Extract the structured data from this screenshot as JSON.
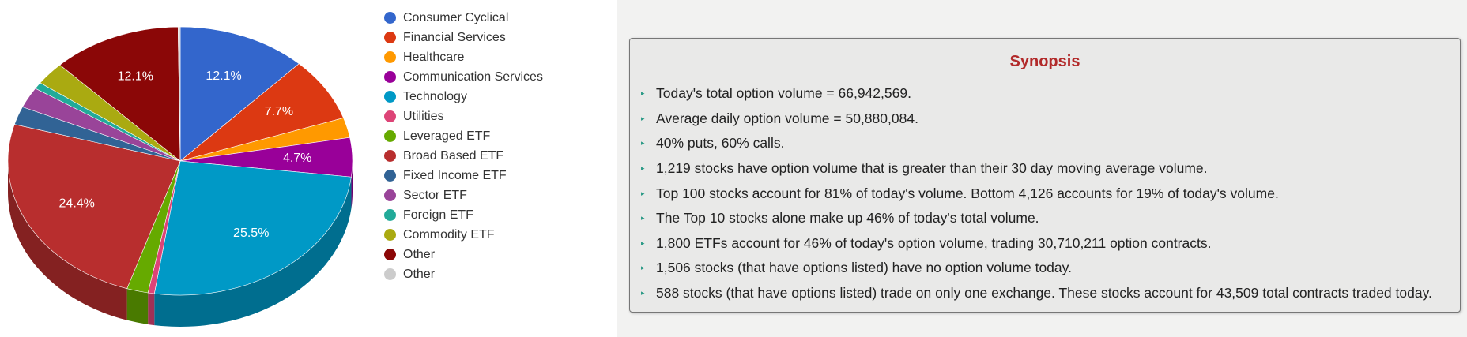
{
  "chart_data": {
    "type": "pie",
    "title": "",
    "slices": [
      {
        "label": "Consumer Cyclical",
        "value": 12.1,
        "color": "#3366cc",
        "text": "12.1%"
      },
      {
        "label": "Financial Services",
        "value": 7.7,
        "color": "#dc3912",
        "text": "7.7%"
      },
      {
        "label": "Healthcare",
        "value": 2.4,
        "color": "#ff9900",
        "text": ""
      },
      {
        "label": "Communication Services",
        "value": 4.7,
        "color": "#990099",
        "text": "4.7%"
      },
      {
        "label": "Technology",
        "value": 25.5,
        "color": "#0099c6",
        "text": "25.5%"
      },
      {
        "label": "Utilities",
        "value": 0.6,
        "color": "#dd4477",
        "text": ""
      },
      {
        "label": "Leveraged ETF",
        "value": 2.0,
        "color": "#66aa00",
        "text": ""
      },
      {
        "label": "Broad Based ETF",
        "value": 24.4,
        "color": "#b82e2e",
        "text": "24.4%"
      },
      {
        "label": "Fixed Income ETF",
        "value": 2.2,
        "color": "#316395",
        "text": ""
      },
      {
        "label": "Sector ETF",
        "value": 2.5,
        "color": "#994499",
        "text": ""
      },
      {
        "label": "Foreign ETF",
        "value": 0.8,
        "color": "#22aa99",
        "text": ""
      },
      {
        "label": "Commodity ETF",
        "value": 2.8,
        "color": "#aaaa11",
        "text": ""
      },
      {
        "label": "Other",
        "value": 12.1,
        "color": "#8b0707",
        "text": "12.1%"
      },
      {
        "label": "Other",
        "value": 0.2,
        "color": "#cccccc",
        "text": ""
      }
    ],
    "legend_position": "right",
    "style": "3d"
  },
  "synopsis": {
    "title": "Synopsis",
    "items": [
      "Today's total option volume = 66,942,569.",
      "Average daily option volume = 50,880,084.",
      "40% puts, 60% calls.",
      "1,219 stocks have option volume that is greater than their 30 day moving average volume.",
      "Top 100 stocks account for 81% of today's volume. Bottom 4,126 accounts for 19% of today's volume.",
      "The Top 10 stocks alone make up 46% of today's total volume.",
      "1,800 ETFs account for 46% of today's option volume, trading 30,710,211 option contracts.",
      "1,506 stocks (that have options listed) have no option volume today.",
      "588 stocks (that have options listed) trade on only one exchange. These stocks account for 43,509 total contracts traded today."
    ]
  }
}
